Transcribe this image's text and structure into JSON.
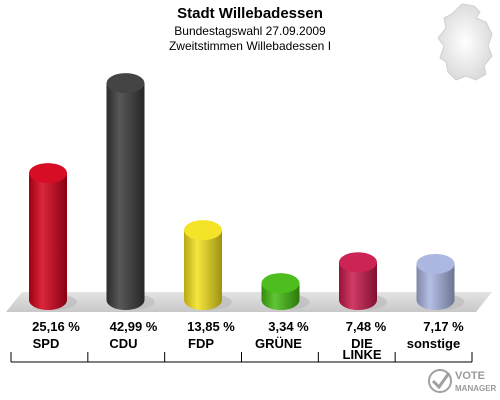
{
  "title": "Stadt Willebadessen",
  "subtitle1": "Bundestagswahl 27.09.2009",
  "subtitle2": "Zweitstimmen Willebadessen I",
  "logo": {
    "line1": "VOTE",
    "line2": "MANAGER"
  },
  "chart_data": {
    "type": "bar",
    "categories": [
      "SPD",
      "CDU",
      "FDP",
      "GRÜNE",
      "DIE LINKE",
      "sonstige"
    ],
    "values": [
      25.16,
      42.99,
      13.85,
      3.34,
      7.48,
      7.17
    ],
    "value_labels": [
      "25,16 %",
      "42,99 %",
      "13,85 %",
      "3,34 %",
      "7,48 %",
      "7,17 %"
    ],
    "colors": [
      "#d4001a",
      "#3a3a3a",
      "#f3e11c",
      "#44bb11",
      "#c8184c",
      "#a8b4e0"
    ],
    "ylim": [
      0,
      45
    ],
    "grid": false,
    "legend": "none"
  }
}
